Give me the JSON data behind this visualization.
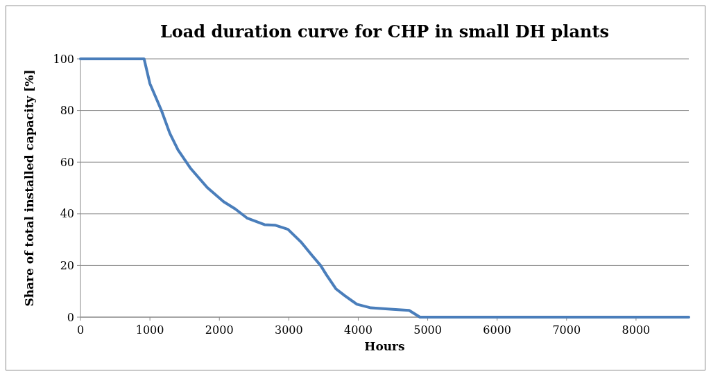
{
  "chart_data": {
    "type": "line",
    "title": "Load duration curve for CHP in small DH plants",
    "xlabel": "Hours",
    "ylabel": "Share of total installed capacity [%]",
    "series": [
      {
        "color": "#4a7ebb",
        "x": [
          0,
          916,
          1000,
          1168,
          1286,
          1404,
          1589,
          1825,
          2061,
          2229,
          2397,
          2650,
          2801,
          2987,
          3172,
          3340,
          3458,
          3542,
          3677,
          3811,
          3980,
          4182,
          4500,
          4733,
          4889,
          8760
        ],
        "values": [
          100,
          100,
          90.4,
          79.9,
          71.2,
          64.8,
          57.5,
          50.2,
          44.7,
          41.9,
          38.4,
          35.8,
          35.6,
          34,
          29.2,
          23.7,
          20,
          16.4,
          11,
          8.2,
          5,
          3.6,
          3,
          2.6,
          0,
          0
        ]
      }
    ],
    "xlim": [
      0,
      8760
    ],
    "xticks": [
      0,
      1000,
      2000,
      3000,
      4000,
      5000,
      6000,
      7000,
      8000
    ],
    "ylim": [
      0,
      100
    ],
    "yticks": [
      0,
      20,
      40,
      60,
      80,
      100
    ],
    "grid": "y",
    "marker": "none",
    "line_style": "solid"
  }
}
